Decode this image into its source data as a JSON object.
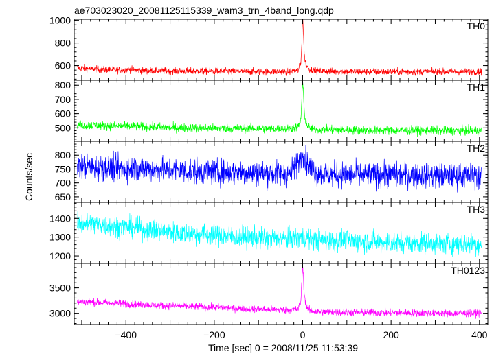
{
  "chart_data": [
    {
      "type": "line",
      "title": "ae703023020_20081125115339_wam3_trn_4band_long.qdp",
      "label": "TH0",
      "color": "#ff0000",
      "xlim": [
        -517,
        419
      ],
      "ylim": [
        470,
        1010
      ],
      "yticks": [
        600,
        800,
        1000
      ],
      "baseline_start": 580,
      "baseline_end": 545,
      "noise": 22,
      "peak": 1060,
      "x": [
        -510,
        -480,
        -450,
        -420,
        -390,
        -360,
        -330,
        -300,
        -270,
        -240,
        -210,
        -180,
        -150,
        -120,
        -90,
        -60,
        -30,
        -10,
        -4,
        -2,
        0,
        2,
        4,
        8,
        15,
        30,
        60,
        90,
        120,
        150,
        180,
        210,
        240,
        270,
        300,
        330,
        360,
        390,
        405
      ],
      "y": [
        580,
        570,
        565,
        560,
        565,
        555,
        555,
        552,
        552,
        550,
        550,
        548,
        548,
        547,
        547,
        546,
        546,
        560,
        620,
        800,
        1060,
        850,
        680,
        600,
        570,
        550,
        548,
        547,
        547,
        546,
        546,
        546,
        545,
        545,
        545,
        545,
        545,
        545,
        545
      ]
    },
    {
      "type": "line",
      "label": "TH1",
      "color": "#00ff00",
      "xlim": [
        -517,
        419
      ],
      "ylim": [
        405,
        835
      ],
      "yticks": [
        500,
        600,
        700,
        800
      ],
      "baseline_start": 520,
      "baseline_end": 480,
      "noise": 22,
      "peak": 830,
      "x": [
        -510,
        -450,
        -390,
        -330,
        -270,
        -210,
        -150,
        -90,
        -30,
        -10,
        -4,
        -2,
        0,
        2,
        4,
        8,
        15,
        30,
        90,
        150,
        210,
        270,
        330,
        405
      ],
      "y": [
        520,
        515,
        510,
        505,
        500,
        498,
        496,
        494,
        492,
        505,
        560,
        700,
        830,
        720,
        600,
        530,
        500,
        488,
        485,
        483,
        482,
        481,
        480,
        480
      ]
    },
    {
      "type": "line",
      "label": "TH2",
      "color": "#0000ff",
      "xlim": [
        -517,
        419
      ],
      "ylim": [
        630,
        850
      ],
      "yticks": [
        650,
        700,
        750,
        800
      ],
      "baseline_start": 758,
      "baseline_end": 725,
      "noise": 33,
      "peak": 850,
      "x": [
        -510,
        -450,
        -390,
        -330,
        -270,
        -210,
        -150,
        -90,
        -30,
        -2,
        0,
        2,
        30,
        90,
        150,
        210,
        270,
        330,
        405
      ],
      "y": [
        758,
        755,
        752,
        748,
        744,
        740,
        738,
        735,
        733,
        790,
        850,
        790,
        732,
        730,
        729,
        728,
        727,
        726,
        725
      ]
    },
    {
      "type": "line",
      "label": "TH3",
      "color": "#00ffff",
      "xlim": [
        -517,
        419
      ],
      "ylim": [
        1160,
        1485
      ],
      "yticks": [
        1200,
        1300,
        1400
      ],
      "baseline_start": 1375,
      "baseline_end": 1262,
      "noise": 40,
      "peak": 1310,
      "x": [
        -510,
        -450,
        -390,
        -330,
        -270,
        -210,
        -150,
        -90,
        -30,
        0,
        30,
        90,
        150,
        210,
        270,
        330,
        405
      ],
      "y": [
        1375,
        1365,
        1350,
        1335,
        1322,
        1312,
        1302,
        1295,
        1290,
        1300,
        1285,
        1280,
        1276,
        1272,
        1268,
        1265,
        1262
      ]
    },
    {
      "type": "line",
      "label": "TH0123",
      "color": "#ff00ff",
      "xlim": [
        -517,
        419
      ],
      "ylim": [
        2780,
        3980
      ],
      "yticks": [
        3000,
        3500
      ],
      "baseline_start": 3230,
      "baseline_end": 3000,
      "noise": 52,
      "peak": 3960,
      "x": [
        -510,
        -450,
        -390,
        -330,
        -270,
        -210,
        -150,
        -90,
        -30,
        -10,
        -4,
        -2,
        0,
        2,
        4,
        8,
        15,
        30,
        90,
        150,
        210,
        270,
        330,
        405
      ],
      "y": [
        3230,
        3210,
        3185,
        3160,
        3140,
        3120,
        3100,
        3080,
        3060,
        3080,
        3250,
        3600,
        3960,
        3650,
        3350,
        3150,
        3060,
        3030,
        3020,
        3015,
        3010,
        3005,
        3000,
        3000
      ]
    }
  ],
  "xaxis": {
    "label": "Time [sec] 0 = 2008/11/25 11:53:39",
    "ticks": [
      -400,
      -200,
      0,
      200,
      400
    ]
  },
  "yaxis": {
    "label": "Counts/sec"
  }
}
